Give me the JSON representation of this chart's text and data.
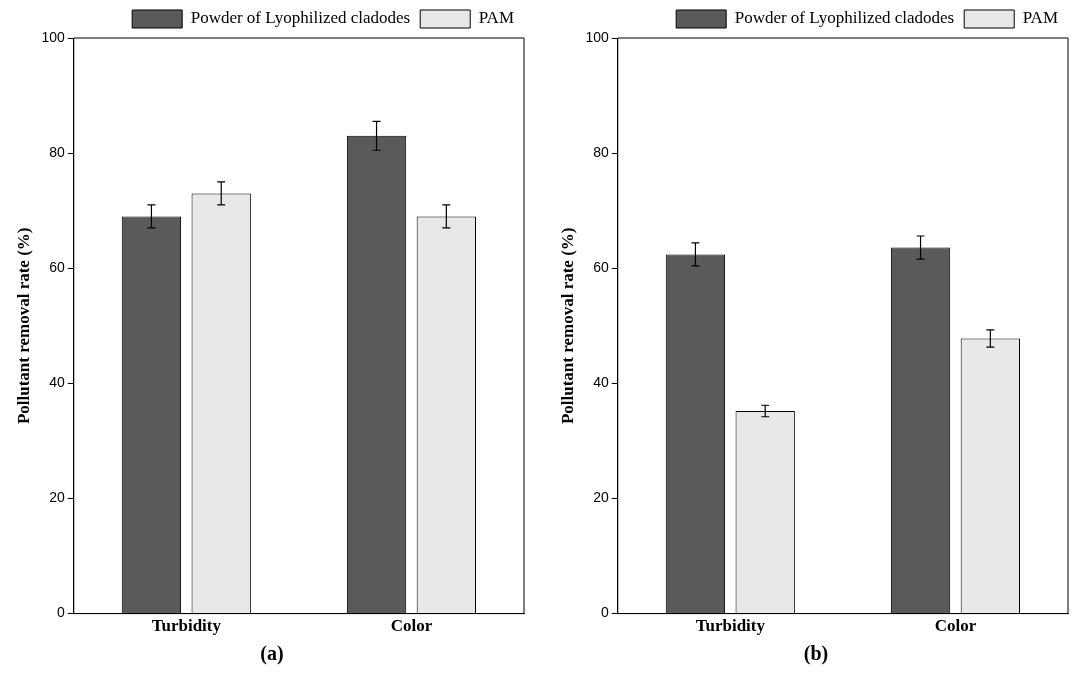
{
  "chart_data": [
    {
      "type": "bar",
      "categories": [
        "Turbidity",
        "Color"
      ],
      "ylabel": "Pollutant removal rate (%)",
      "ylim": [
        0,
        100
      ],
      "yticks": [
        0,
        20,
        40,
        60,
        80,
        100
      ],
      "grid": false,
      "legend": "top",
      "annotations": [
        "(a)"
      ],
      "series": [
        {
          "name": "Powder of Lyophilized cladodes",
          "color": "#5a5a5a",
          "values": [
            69,
            83
          ],
          "errors": [
            2,
            2.5
          ]
        },
        {
          "name": "PAM",
          "color": "#e8e8e8",
          "values": [
            73,
            69
          ],
          "errors": [
            2,
            2
          ]
        }
      ]
    },
    {
      "type": "bar",
      "categories": [
        "Turbidity",
        "Color"
      ],
      "ylabel": "Pollutant removal rate (%)",
      "ylim": [
        0,
        100
      ],
      "yticks": [
        0,
        20,
        40,
        60,
        80,
        100
      ],
      "grid": false,
      "legend": "top",
      "annotations": [
        "(b)"
      ],
      "series": [
        {
          "name": "Powder of Lyophilized cladodes",
          "color": "#5a5a5a",
          "values": [
            62.4,
            63.6
          ],
          "errors": [
            2,
            2
          ]
        },
        {
          "name": "PAM",
          "color": "#e8e8e8",
          "values": [
            35.2,
            47.8
          ],
          "errors": [
            1,
            1.5
          ]
        }
      ]
    }
  ]
}
